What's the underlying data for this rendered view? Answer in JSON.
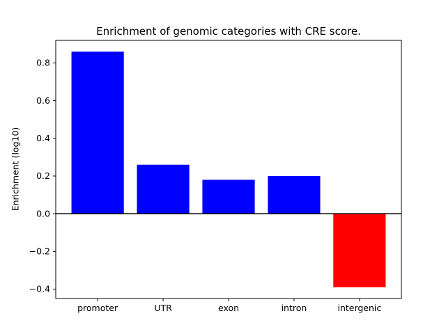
{
  "chart_data": {
    "type": "bar",
    "title": "Enrichment of genomic categories with CRE score.",
    "xlabel": "",
    "ylabel": "Enrichment (log10)",
    "categories": [
      "promoter",
      "UTR",
      "exon",
      "intron",
      "intergenic"
    ],
    "values": [
      0.86,
      0.26,
      0.18,
      0.2,
      -0.39
    ],
    "bar_colors": [
      "#0000ff",
      "#0000ff",
      "#0000ff",
      "#0000ff",
      "#ff0000"
    ],
    "positive_color": "#0000ff",
    "negative_color": "#ff0000",
    "baseline": 0,
    "ylim": [
      -0.45,
      0.92
    ],
    "yticks": [
      {
        "value": -0.4,
        "label": "−0.4"
      },
      {
        "value": -0.2,
        "label": "−0.2"
      },
      {
        "value": 0.0,
        "label": "0.0"
      },
      {
        "value": 0.2,
        "label": "0.2"
      },
      {
        "value": 0.4,
        "label": "0.4"
      },
      {
        "value": 0.6,
        "label": "0.6"
      },
      {
        "value": 0.8,
        "label": "0.8"
      }
    ],
    "grid": false,
    "legend": null,
    "background_color": "#ffffff",
    "axis_color": "#000000"
  }
}
